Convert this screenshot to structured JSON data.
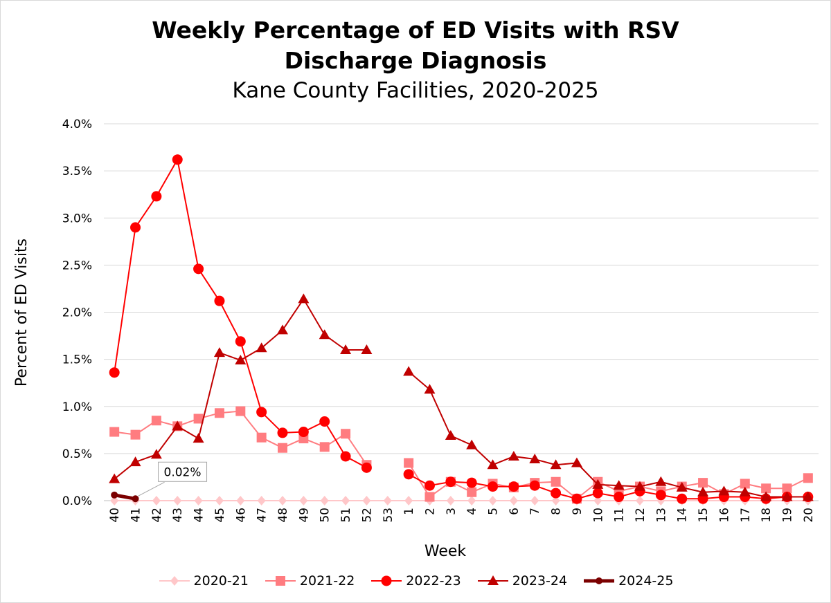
{
  "chart_data": {
    "type": "line",
    "title": "Weekly Percentage of ED Visits with RSV Discharge Diagnosis",
    "title_line1": "Weekly Percentage of ED Visits with RSV",
    "title_line2": "Discharge Diagnosis",
    "subtitle": "Kane County Facilities, 2020-2025",
    "xlabel": "Week",
    "ylabel": "Percent of ED Visits",
    "ylim": [
      0,
      4.0
    ],
    "yticks": [
      0,
      0.5,
      1.0,
      1.5,
      2.0,
      2.5,
      3.0,
      3.5,
      4.0
    ],
    "ytick_labels": [
      "0.0%",
      "0.5%",
      "1.0%",
      "1.5%",
      "2.0%",
      "2.5%",
      "3.0%",
      "3.5%",
      "4.0%"
    ],
    "categories": [
      "40",
      "41",
      "42",
      "43",
      "44",
      "45",
      "46",
      "47",
      "48",
      "49",
      "50",
      "51",
      "52",
      "53",
      "1",
      "2",
      "3",
      "4",
      "5",
      "6",
      "7",
      "8",
      "9",
      "10",
      "11",
      "12",
      "13",
      "14",
      "15",
      "16",
      "17",
      "18",
      "19",
      "20"
    ],
    "grid": true,
    "legend_position": "bottom",
    "annotation": {
      "series": "2024-25",
      "category": "41",
      "text": "0.02%"
    },
    "series": [
      {
        "name": "2020-21",
        "color": "#ffc7c9",
        "marker": "diamond",
        "values": [
          0,
          0,
          0,
          0,
          0,
          0,
          0,
          0,
          0,
          0,
          0,
          0,
          0,
          0,
          0,
          0,
          0,
          0,
          0,
          0,
          0,
          0,
          0,
          0,
          0,
          0,
          0,
          0,
          0,
          0,
          0,
          0,
          0,
          0
        ]
      },
      {
        "name": "2021-22",
        "color": "#ff7c80",
        "marker": "square",
        "values": [
          0.73,
          0.7,
          0.85,
          0.79,
          0.87,
          0.93,
          0.95,
          0.67,
          0.56,
          0.66,
          0.57,
          0.71,
          0.38,
          null,
          0.4,
          0.04,
          0.2,
          0.09,
          0.18,
          0.14,
          0.19,
          0.2,
          0.02,
          0.2,
          0.1,
          0.15,
          0.1,
          0.15,
          0.19,
          0.07,
          0.18,
          0.13,
          0.13,
          0.24
        ]
      },
      {
        "name": "2022-23",
        "color": "#ff0000",
        "marker": "circle",
        "values": [
          1.36,
          2.9,
          3.23,
          3.62,
          2.46,
          2.12,
          1.69,
          0.94,
          0.72,
          0.73,
          0.84,
          0.47,
          0.35,
          null,
          0.28,
          0.16,
          0.2,
          0.19,
          0.15,
          0.15,
          0.16,
          0.08,
          0.02,
          0.08,
          0.04,
          0.1,
          0.06,
          0.02,
          0.02,
          0.04,
          0.04,
          0.02,
          0.04,
          0.04
        ]
      },
      {
        "name": "2023-24",
        "color": "#c00000",
        "marker": "triangle",
        "values": [
          0.23,
          0.41,
          0.49,
          0.79,
          0.66,
          1.57,
          1.49,
          1.62,
          1.81,
          2.14,
          1.76,
          1.6,
          1.6,
          null,
          1.37,
          1.18,
          0.69,
          0.59,
          0.38,
          0.47,
          0.44,
          0.38,
          0.4,
          0.17,
          0.16,
          0.15,
          0.2,
          0.14,
          0.09,
          0.1,
          0.09,
          0.04,
          0.04,
          0.04
        ]
      },
      {
        "name": "2024-25",
        "color": "#7b0000",
        "marker": "circle-thick",
        "values": [
          0.06,
          0.02,
          null,
          null,
          null,
          null,
          null,
          null,
          null,
          null,
          null,
          null,
          null,
          null,
          null,
          null,
          null,
          null,
          null,
          null,
          null,
          null,
          null,
          null,
          null,
          null,
          null,
          null,
          null,
          null,
          null,
          null,
          null,
          null
        ]
      }
    ]
  }
}
